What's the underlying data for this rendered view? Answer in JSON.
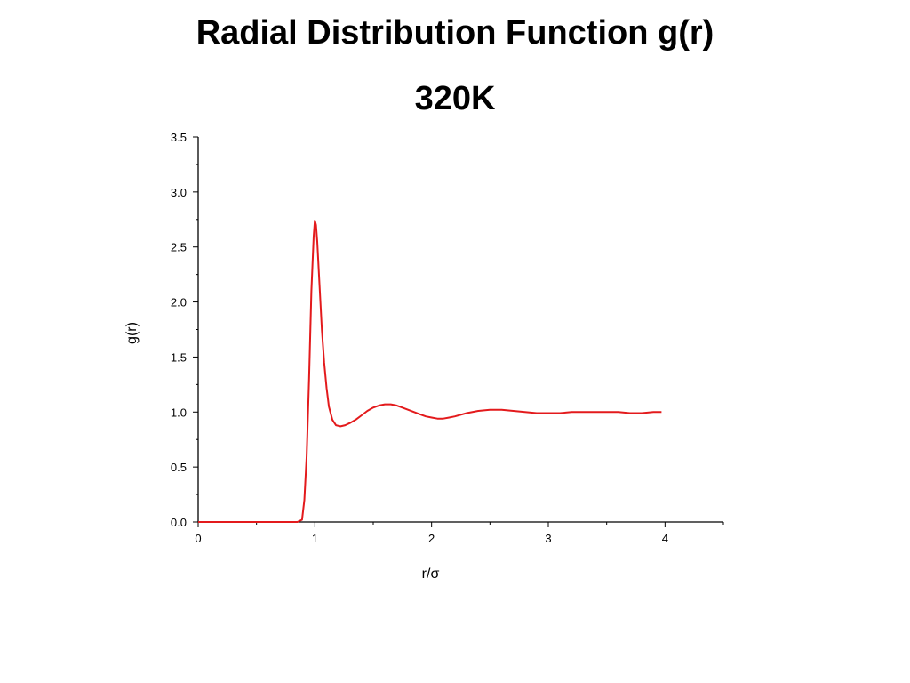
{
  "chart_data": {
    "type": "line",
    "title": "Radial Distribution Function g(r)",
    "subtitle": "320K",
    "xlabel": "r/σ",
    "ylabel": "g(r)",
    "xlim": [
      0,
      4.5
    ],
    "ylim": [
      0,
      3.5
    ],
    "xticks": [
      0,
      1,
      2,
      3,
      4
    ],
    "xtick_labels": [
      "0",
      "1",
      "2",
      "3",
      "4"
    ],
    "yticks": [
      0,
      0.5,
      1,
      1.5,
      2,
      2.5,
      3,
      3.5
    ],
    "ytick_labels": [
      "0.0",
      "0.5",
      "1.0",
      "1.5",
      "2.0",
      "2.5",
      "3.0",
      "3.5"
    ],
    "grid": false,
    "series": [
      {
        "color": "#e31a1c",
        "x": [
          0,
          0.5,
          0.85,
          0.89,
          0.91,
          0.93,
          0.95,
          0.97,
          0.99,
          1.0,
          1.01,
          1.02,
          1.04,
          1.06,
          1.08,
          1.1,
          1.12,
          1.15,
          1.18,
          1.22,
          1.26,
          1.3,
          1.35,
          1.4,
          1.45,
          1.5,
          1.55,
          1.6,
          1.65,
          1.7,
          1.75,
          1.8,
          1.85,
          1.9,
          1.95,
          2.0,
          2.05,
          2.1,
          2.15,
          2.2,
          2.3,
          2.4,
          2.5,
          2.6,
          2.7,
          2.8,
          2.9,
          3.0,
          3.1,
          3.2,
          3.3,
          3.4,
          3.5,
          3.6,
          3.7,
          3.8,
          3.9,
          3.97
        ],
        "y": [
          0.0,
          0.0,
          0.0,
          0.02,
          0.2,
          0.6,
          1.3,
          2.1,
          2.6,
          2.74,
          2.7,
          2.55,
          2.15,
          1.75,
          1.45,
          1.22,
          1.05,
          0.93,
          0.88,
          0.87,
          0.88,
          0.9,
          0.93,
          0.97,
          1.01,
          1.04,
          1.06,
          1.07,
          1.07,
          1.06,
          1.04,
          1.02,
          1.0,
          0.98,
          0.96,
          0.95,
          0.94,
          0.94,
          0.95,
          0.96,
          0.99,
          1.01,
          1.02,
          1.02,
          1.01,
          1.0,
          0.99,
          0.99,
          0.99,
          1.0,
          1.0,
          1.0,
          1.0,
          1.0,
          0.99,
          0.99,
          1.0,
          1.0
        ]
      }
    ]
  }
}
